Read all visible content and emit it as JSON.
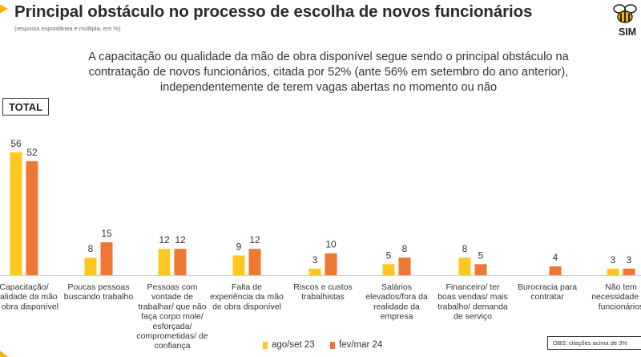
{
  "header": {
    "title": "Principal obstáculo no processo de escolha de novos funcionários",
    "subtitle": "(resposta espontânea e múltipla, em %)",
    "logo_text": "SIM"
  },
  "summary": {
    "lines": [
      "A capacitação ou qualidade da mão de obra disponível segue sendo o principal obstáculo na",
      "contratação de novos funcionários, citada por 52% (ante 56% em setembro do ano anterior),",
      "independentemente de terem vagas abertas no momento ou não"
    ]
  },
  "total_label": "TOTAL",
  "obs_note": "OBS: citações acima de 3%",
  "colors": {
    "series1": "#FFC820",
    "series2": "#EE7733",
    "accent": "#F4B400"
  },
  "chart_data": {
    "type": "bar",
    "categories": [
      "Capacitação/ qualidade da mão de obra disponível",
      "Poucas pessoas buscando trabalho",
      "Pessoas com vontade de trabalhar/ que não faça corpo mole/ esforçada/ comprometidas/ de confiança",
      "Falta de experiência da mão de obra disponível",
      "Riscos e custos trabalhistas",
      "Salários elevados/fora da realidade da empresa",
      "Financeiro/ ter boas vendas/ mais trabalho/ demanda de serviço",
      "Burocracia para contratar",
      "Não tem necessidade de funcionários"
    ],
    "category_lines": [
      [
        "Capacitação/",
        "qualidade da mão",
        "de obra disponível"
      ],
      [
        "Poucas pessoas",
        "buscando trabalho"
      ],
      [
        "Pessoas com",
        "vontade de",
        "trabalhar/ que não",
        "faça corpo mole/",
        "esforçada/",
        "comprometidas/ de",
        "confiança"
      ],
      [
        "Falta de",
        "experiência da mão",
        "de obra disponível"
      ],
      [
        "Riscos e custos",
        "trabalhistas"
      ],
      [
        "Salários",
        "elevados/fora da",
        "realidade da",
        "empresa"
      ],
      [
        "Financeiro/ ter",
        "boas vendas/ mais",
        "trabalho/ demanda",
        "de serviço"
      ],
      [
        "Burocracia para",
        "contratar"
      ],
      [
        "Não tem",
        "necessidade de",
        "funcionários"
      ]
    ],
    "series": [
      {
        "name": "ago/set 23",
        "values": [
          56,
          8,
          12,
          9,
          3,
          5,
          8,
          null,
          3
        ]
      },
      {
        "name": "fev/mar 24",
        "values": [
          52,
          15,
          12,
          12,
          10,
          8,
          5,
          4,
          3
        ]
      }
    ],
    "ylim": [
      0,
      56
    ],
    "grid": false,
    "legend_position": "bottom"
  }
}
